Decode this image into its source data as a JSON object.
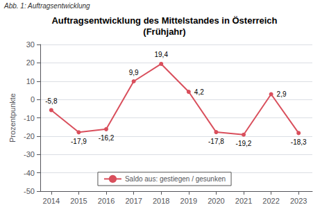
{
  "chart_data": {
    "type": "line",
    "title": "Auftragsentwicklung des Mittelstandes in Österreich\n(Frühjahr)",
    "annotations": [
      "Abb. 1: Auftragsentwicklung"
    ],
    "y_label": "Prozentpunkte",
    "x": [
      2014,
      2015,
      2016,
      2017,
      2018,
      2019,
      2020,
      2021,
      2022,
      2023
    ],
    "series": [
      {
        "name": "Saldo aus: gestiegen / gesunken",
        "color": "#d94f5c",
        "marker": "circle",
        "line_style": "solid",
        "values": [
          -5.8,
          -17.9,
          -16.2,
          9.9,
          19.4,
          4.2,
          -17.8,
          -19.2,
          2.9,
          -18.3
        ],
        "value_labels": [
          "-5,8",
          "-17,9",
          "-16,2",
          "9,9",
          "19,4",
          "4,2",
          "-17,8",
          "-19,2",
          "2,9",
          "-18,3"
        ]
      }
    ],
    "xlim": [
      2013.6,
      2023.5
    ],
    "xticks": [
      2014,
      2015,
      2016,
      2017,
      2018,
      2019,
      2020,
      2021,
      2022,
      2023
    ],
    "ylim": [
      -50,
      30
    ],
    "yticks": [
      -50,
      -40,
      -30,
      -20,
      -10,
      0,
      10,
      20,
      30
    ],
    "grid": true,
    "legend": "lower center",
    "data_labels": true
  }
}
